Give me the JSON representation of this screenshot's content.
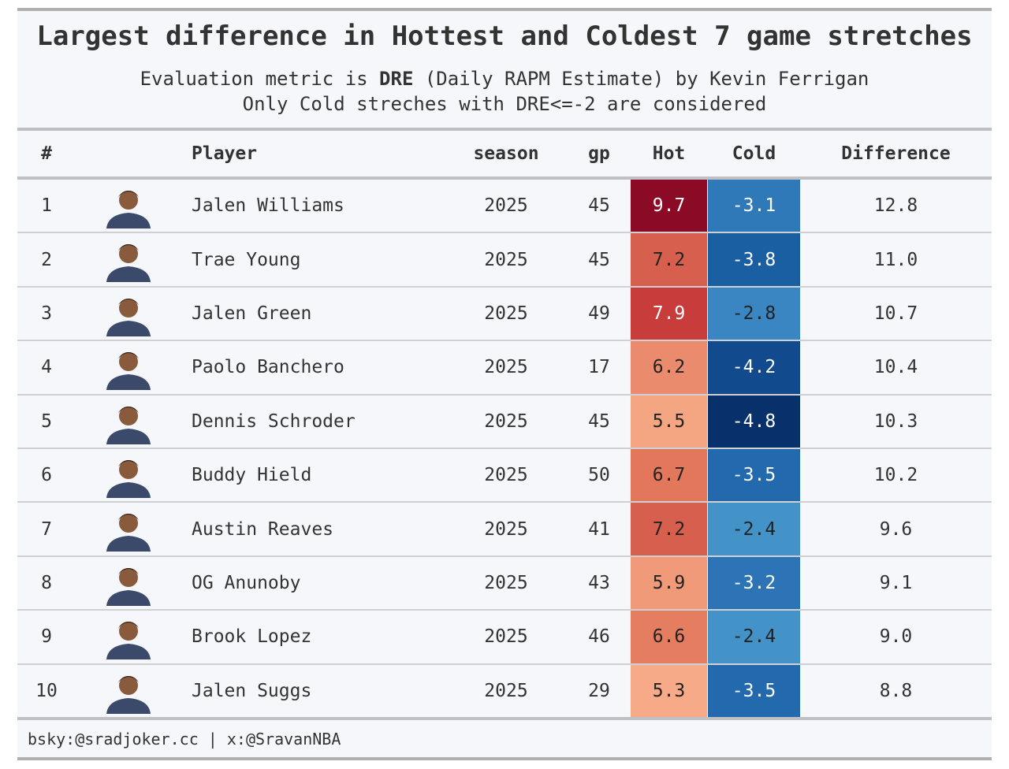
{
  "header": {
    "title": "Largest difference in Hottest and Coldest 7 game stretches",
    "subtitle_line1": [
      "Evaluation metric is ",
      "DRE",
      " (Daily RAPM Estimate) by Kevin Ferrigan"
    ],
    "subtitle_line2": "Only Cold streches with DRE<=-2 are considered"
  },
  "table": {
    "columns": [
      "#",
      "Player",
      "season",
      "gp",
      "Hot",
      "Cold",
      "Difference"
    ],
    "rows": [
      [
        "1",
        "Jalen Williams",
        "2025",
        "45",
        "9.7",
        "-3.1",
        "12.8"
      ],
      [
        "2",
        "Trae Young",
        "2025",
        "45",
        "7.2",
        "-3.8",
        "11.0"
      ],
      [
        "3",
        "Jalen Green",
        "2025",
        "49",
        "7.9",
        "-2.8",
        "10.7"
      ],
      [
        "4",
        "Paolo Banchero",
        "2025",
        "17",
        "6.2",
        "-4.2",
        "10.4"
      ],
      [
        "5",
        "Dennis Schroder",
        "2025",
        "45",
        "5.5",
        "-4.8",
        "10.3"
      ],
      [
        "6",
        "Buddy Hield",
        "2025",
        "50",
        "6.7",
        "-3.5",
        "10.2"
      ],
      [
        "7",
        "Austin Reaves",
        "2025",
        "41",
        "7.2",
        "-2.4",
        "9.6"
      ],
      [
        "8",
        "OG Anunoby",
        "2025",
        "43",
        "5.9",
        "-3.2",
        "9.1"
      ],
      [
        "9",
        "Brook Lopez",
        "2025",
        "46",
        "6.6",
        "-2.4",
        "9.0"
      ],
      [
        "10",
        "Jalen Suggs",
        "2025",
        "29",
        "5.3",
        "-3.5",
        "8.8"
      ]
    ],
    "hot_colors": [
      "#8b0a26",
      "#d6604d",
      "#c83c3c",
      "#ea8b6e",
      "#f4a582",
      "#e3775c",
      "#d6604d",
      "#f09a7a",
      "#e57d60",
      "#f6aa88"
    ],
    "cold_colors": [
      "#2f79b9",
      "#1b5fa3",
      "#3a86c2",
      "#114b8d",
      "#08306b",
      "#2369ad",
      "#4393c8",
      "#2c74b5",
      "#4393c8",
      "#2369ad"
    ]
  },
  "footer": "bsky:@sradjoker.cc | x:@SravanNBA"
}
